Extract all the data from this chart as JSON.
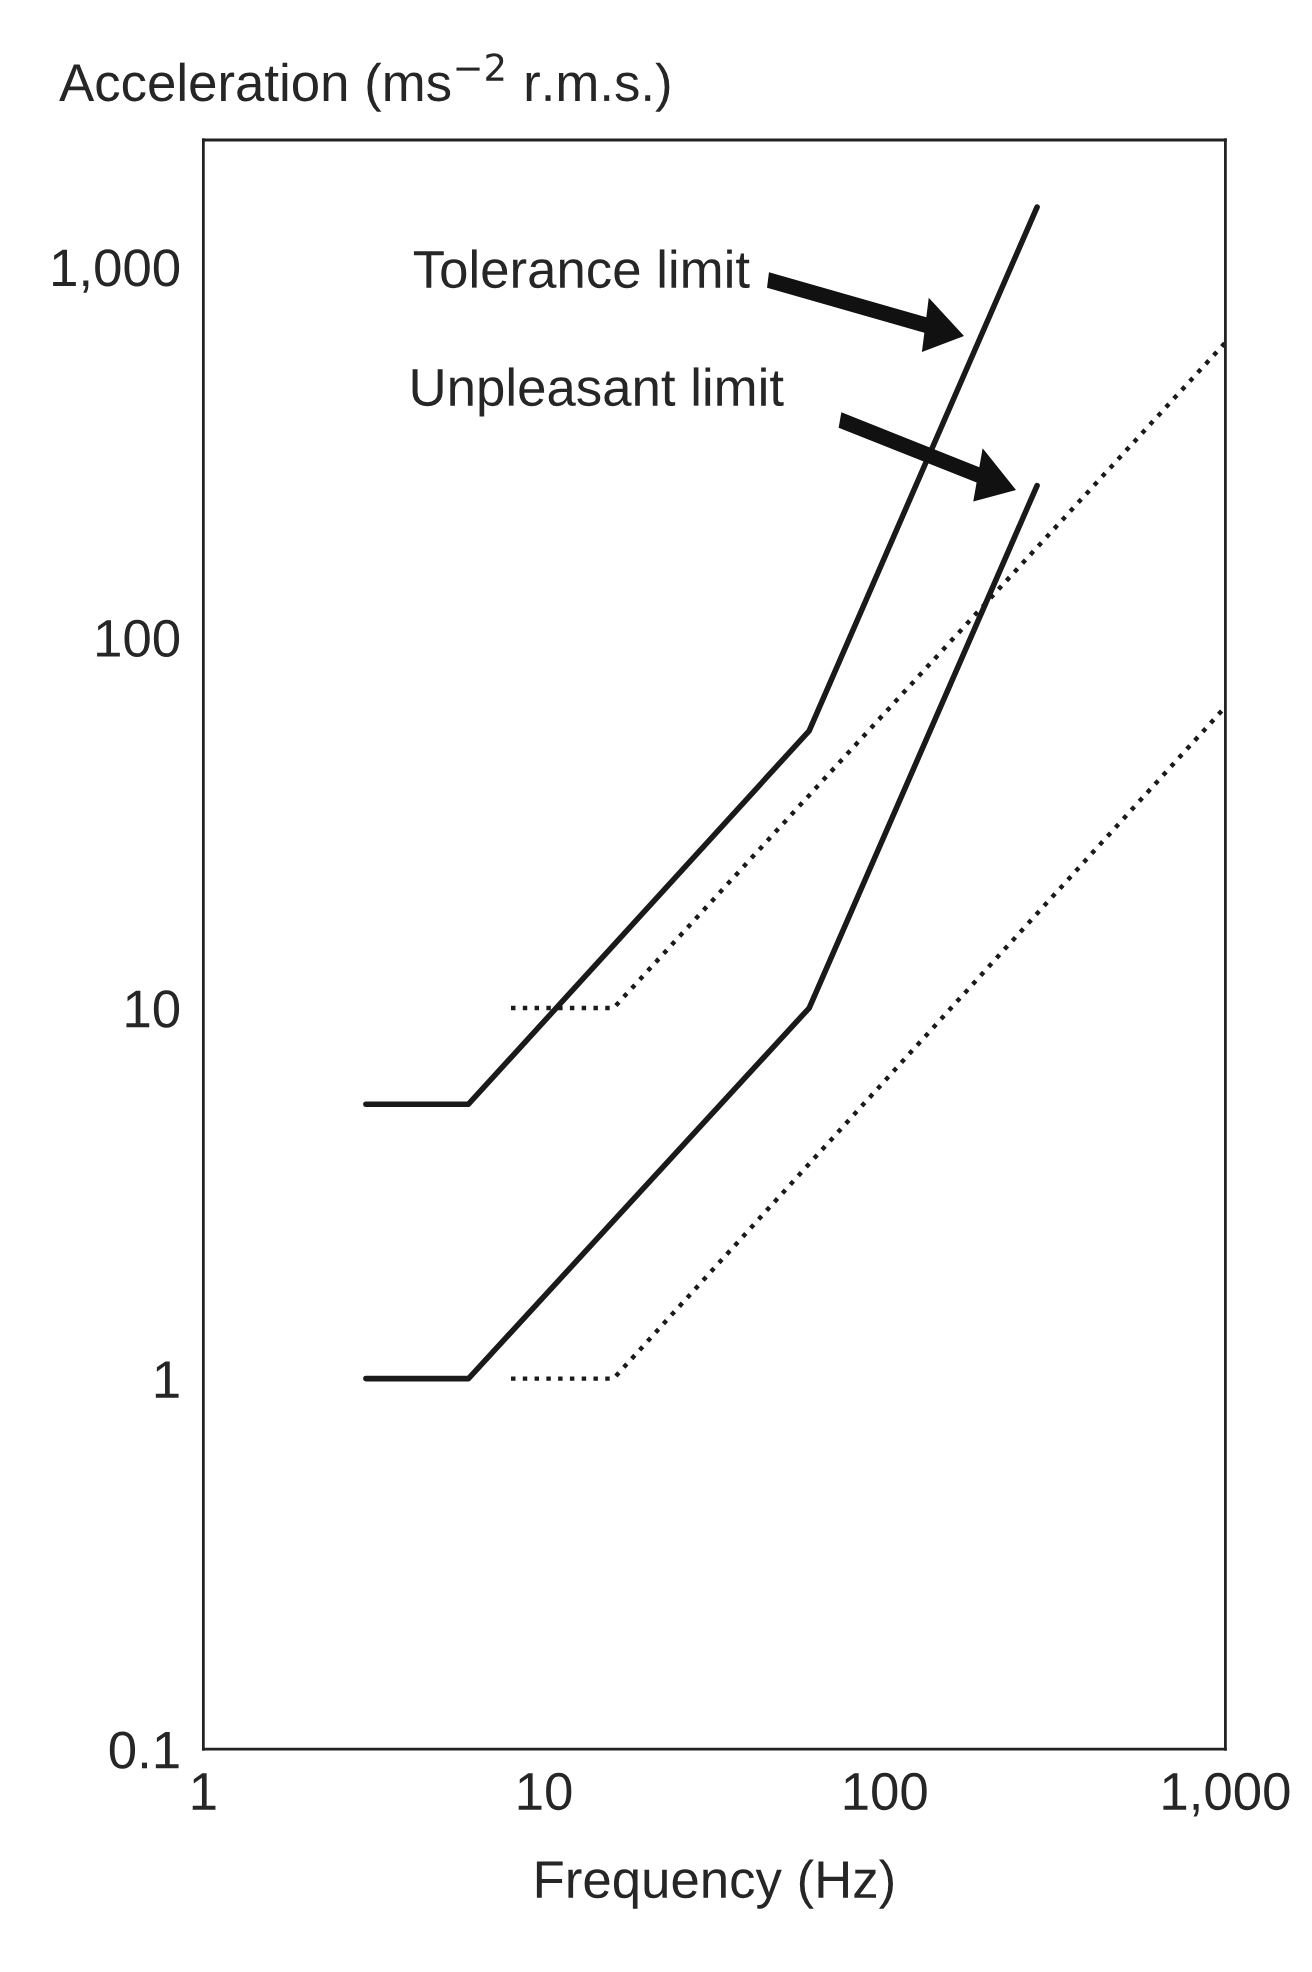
{
  "chart_data": {
    "type": "line",
    "ylabel": "Acceleration (ms$^{−2}$ r.m.s.)",
    "xlabel": "Frequency (Hz)",
    "log": "xy",
    "xlim": [
      1,
      1000
    ],
    "ylim": [
      0.1,
      2200
    ],
    "xticks": [
      1,
      10,
      100,
      {
        "value": 1000,
        "label": "1,000"
      }
    ],
    "yticks": [
      0.1,
      1,
      10,
      100,
      {
        "value": 1000,
        "label": "1,000"
      }
    ],
    "grid": false,
    "legend": false,
    "marker": "none",
    "series": [
      {
        "color": "#1a1a1a",
        "line_style": "solid",
        "x": [
          3,
          6,
          60,
          280
        ],
        "values": [
          5.5,
          5.5,
          56,
          1450
        ]
      },
      {
        "color": "#1a1a1a",
        "line_style": "solid",
        "x": [
          3,
          6,
          60,
          280
        ],
        "values": [
          1,
          1,
          10,
          257
        ]
      },
      {
        "color": "#1a1a1a",
        "line_style": "dotted",
        "x": [
          8,
          16,
          1000
        ],
        "values": [
          10,
          10,
          625
        ]
      },
      {
        "color": "#1a1a1a",
        "line_style": "dotted",
        "x": [
          8,
          16,
          1000
        ],
        "values": [
          1,
          1,
          65
        ]
      }
    ],
    "annotations": [
      "Tolerance limit",
      "Unpleasant limit"
    ]
  }
}
